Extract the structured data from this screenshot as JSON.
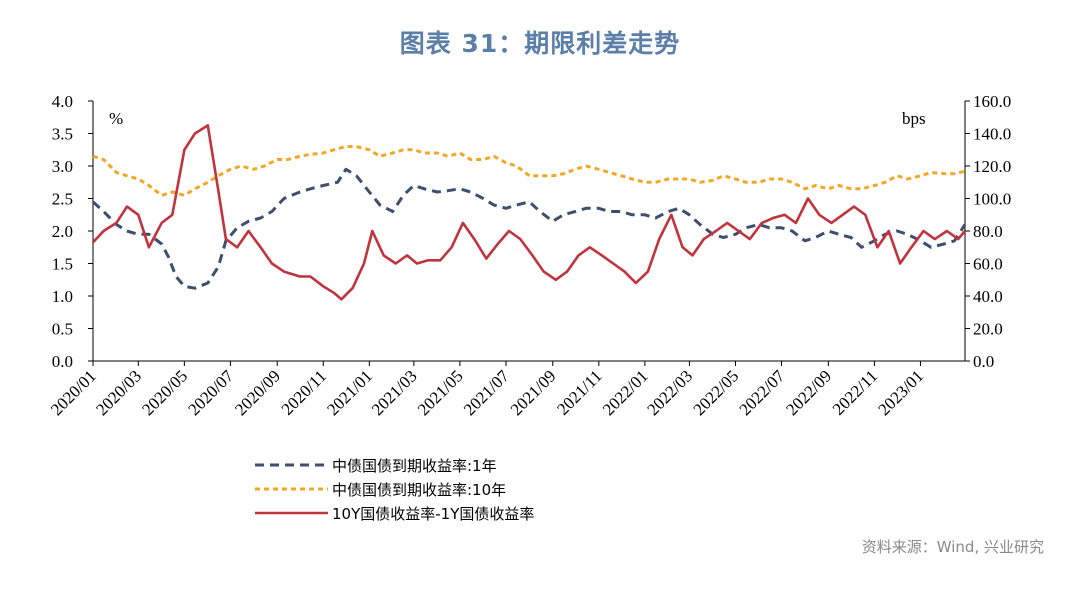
{
  "title": "图表 31：期限利差走势",
  "source": "资料来源：Wind, 兴业研究",
  "chart_data": {
    "type": "line",
    "left_axis": {
      "unit": "%",
      "range": [
        0,
        4
      ],
      "ticks": [
        "0.0",
        "0.5",
        "1.0",
        "1.5",
        "2.0",
        "2.5",
        "3.0",
        "3.5",
        "4.0"
      ]
    },
    "right_axis": {
      "unit": "bps",
      "range": [
        0,
        160
      ],
      "ticks": [
        "0.0",
        "20.0",
        "40.0",
        "60.0",
        "80.0",
        "100.0",
        "120.0",
        "140.0",
        "160.0"
      ]
    },
    "x_range": [
      "2020-01-01",
      "2023-03-01"
    ],
    "x_ticks": [
      "2020/01",
      "2020/03",
      "2020/05",
      "2020/07",
      "2020/09",
      "2020/11",
      "2021/01",
      "2021/03",
      "2021/05",
      "2021/07",
      "2021/09",
      "2021/11",
      "2022/01",
      "2022/03",
      "2022/05",
      "2022/07",
      "2022/09",
      "2022/11",
      "2023/01"
    ],
    "x_tick_dates": [
      "2020-01-01",
      "2020-03-01",
      "2020-05-01",
      "2020-07-01",
      "2020-09-01",
      "2020-11-01",
      "2021-01-01",
      "2021-03-01",
      "2021-05-01",
      "2021-07-01",
      "2021-09-01",
      "2021-11-01",
      "2022-01-01",
      "2022-03-01",
      "2022-05-01",
      "2022-07-01",
      "2022-09-01",
      "2022-11-01",
      "2023-01-01"
    ],
    "legend_position": "bottom-center",
    "grid": false,
    "series": [
      {
        "name": "中债国债到期收益率:1年",
        "axis": "left",
        "style": "dashed",
        "color": "#3d4e6e",
        "points": [
          [
            "2020-01-01",
            2.45
          ],
          [
            "2020-01-15",
            2.3
          ],
          [
            "2020-02-01",
            2.1
          ],
          [
            "2020-02-15",
            2.0
          ],
          [
            "2020-03-01",
            1.95
          ],
          [
            "2020-03-15",
            1.95
          ],
          [
            "2020-04-01",
            1.8
          ],
          [
            "2020-04-10",
            1.6
          ],
          [
            "2020-04-20",
            1.3
          ],
          [
            "2020-05-01",
            1.15
          ],
          [
            "2020-05-15",
            1.12
          ],
          [
            "2020-06-01",
            1.2
          ],
          [
            "2020-06-15",
            1.45
          ],
          [
            "2020-06-25",
            1.85
          ],
          [
            "2020-07-10",
            2.05
          ],
          [
            "2020-07-25",
            2.15
          ],
          [
            "2020-08-10",
            2.2
          ],
          [
            "2020-08-25",
            2.3
          ],
          [
            "2020-09-10",
            2.5
          ],
          [
            "2020-10-01",
            2.6
          ],
          [
            "2020-10-15",
            2.65
          ],
          [
            "2020-11-01",
            2.7
          ],
          [
            "2020-11-20",
            2.75
          ],
          [
            "2020-12-01",
            2.95
          ],
          [
            "2020-12-15",
            2.85
          ],
          [
            "2021-01-01",
            2.6
          ],
          [
            "2021-01-15",
            2.4
          ],
          [
            "2021-02-01",
            2.3
          ],
          [
            "2021-02-15",
            2.55
          ],
          [
            "2021-03-01",
            2.7
          ],
          [
            "2021-03-15",
            2.65
          ],
          [
            "2021-04-01",
            2.6
          ],
          [
            "2021-04-15",
            2.62
          ],
          [
            "2021-05-01",
            2.65
          ],
          [
            "2021-05-15",
            2.6
          ],
          [
            "2021-06-01",
            2.5
          ],
          [
            "2021-06-15",
            2.4
          ],
          [
            "2021-07-01",
            2.35
          ],
          [
            "2021-07-15",
            2.4
          ],
          [
            "2021-08-01",
            2.45
          ],
          [
            "2021-08-15",
            2.3
          ],
          [
            "2021-09-01",
            2.15
          ],
          [
            "2021-09-15",
            2.25
          ],
          [
            "2021-10-01",
            2.3
          ],
          [
            "2021-10-15",
            2.35
          ],
          [
            "2021-11-01",
            2.35
          ],
          [
            "2021-11-15",
            2.3
          ],
          [
            "2021-12-01",
            2.3
          ],
          [
            "2021-12-15",
            2.25
          ],
          [
            "2022-01-01",
            2.25
          ],
          [
            "2022-01-15",
            2.2
          ],
          [
            "2022-02-01",
            2.3
          ],
          [
            "2022-02-15",
            2.35
          ],
          [
            "2022-03-01",
            2.25
          ],
          [
            "2022-03-15",
            2.1
          ],
          [
            "2022-04-01",
            1.95
          ],
          [
            "2022-04-15",
            1.9
          ],
          [
            "2022-05-01",
            1.95
          ],
          [
            "2022-05-15",
            2.05
          ],
          [
            "2022-06-01",
            2.1
          ],
          [
            "2022-06-15",
            2.05
          ],
          [
            "2022-07-01",
            2.05
          ],
          [
            "2022-07-15",
            2.0
          ],
          [
            "2022-08-01",
            1.85
          ],
          [
            "2022-08-15",
            1.9
          ],
          [
            "2022-09-01",
            2.0
          ],
          [
            "2022-09-15",
            1.95
          ],
          [
            "2022-10-01",
            1.9
          ],
          [
            "2022-10-15",
            1.75
          ],
          [
            "2022-11-01",
            1.85
          ],
          [
            "2022-11-15",
            1.95
          ],
          [
            "2022-12-01",
            2.0
          ],
          [
            "2022-12-15",
            1.95
          ],
          [
            "2023-01-01",
            1.85
          ],
          [
            "2023-01-15",
            1.75
          ],
          [
            "2023-02-01",
            1.8
          ],
          [
            "2023-02-15",
            1.85
          ],
          [
            "2023-03-01",
            2.1
          ]
        ]
      },
      {
        "name": "中债国债到期收益率:10年",
        "axis": "left",
        "style": "dashed",
        "color": "#f5a623",
        "points": [
          [
            "2020-01-01",
            3.15
          ],
          [
            "2020-01-15",
            3.1
          ],
          [
            "2020-02-01",
            2.9
          ],
          [
            "2020-02-15",
            2.85
          ],
          [
            "2020-03-01",
            2.8
          ],
          [
            "2020-03-15",
            2.7
          ],
          [
            "2020-04-01",
            2.55
          ],
          [
            "2020-04-15",
            2.6
          ],
          [
            "2020-05-01",
            2.55
          ],
          [
            "2020-05-15",
            2.65
          ],
          [
            "2020-06-01",
            2.75
          ],
          [
            "2020-06-15",
            2.85
          ],
          [
            "2020-07-01",
            2.95
          ],
          [
            "2020-07-15",
            3.0
          ],
          [
            "2020-08-01",
            2.95
          ],
          [
            "2020-08-15",
            3.0
          ],
          [
            "2020-09-01",
            3.1
          ],
          [
            "2020-09-15",
            3.1
          ],
          [
            "2020-10-01",
            3.15
          ],
          [
            "2020-10-15",
            3.18
          ],
          [
            "2020-11-01",
            3.2
          ],
          [
            "2020-11-15",
            3.25
          ],
          [
            "2020-12-01",
            3.3
          ],
          [
            "2020-12-15",
            3.3
          ],
          [
            "2021-01-01",
            3.25
          ],
          [
            "2021-01-15",
            3.15
          ],
          [
            "2021-02-01",
            3.2
          ],
          [
            "2021-02-15",
            3.25
          ],
          [
            "2021-03-01",
            3.25
          ],
          [
            "2021-03-15",
            3.2
          ],
          [
            "2021-04-01",
            3.2
          ],
          [
            "2021-04-15",
            3.15
          ],
          [
            "2021-05-01",
            3.2
          ],
          [
            "2021-05-15",
            3.1
          ],
          [
            "2021-06-01",
            3.1
          ],
          [
            "2021-06-15",
            3.15
          ],
          [
            "2021-07-01",
            3.05
          ],
          [
            "2021-07-15",
            3.0
          ],
          [
            "2021-08-01",
            2.85
          ],
          [
            "2021-08-15",
            2.85
          ],
          [
            "2021-09-01",
            2.85
          ],
          [
            "2021-09-15",
            2.88
          ],
          [
            "2021-10-01",
            2.95
          ],
          [
            "2021-10-15",
            3.0
          ],
          [
            "2021-11-01",
            2.95
          ],
          [
            "2021-11-15",
            2.9
          ],
          [
            "2021-12-01",
            2.85
          ],
          [
            "2021-12-15",
            2.8
          ],
          [
            "2022-01-01",
            2.75
          ],
          [
            "2022-01-15",
            2.75
          ],
          [
            "2022-02-01",
            2.8
          ],
          [
            "2022-02-15",
            2.8
          ],
          [
            "2022-03-01",
            2.8
          ],
          [
            "2022-03-15",
            2.75
          ],
          [
            "2022-04-01",
            2.78
          ],
          [
            "2022-04-15",
            2.85
          ],
          [
            "2022-05-01",
            2.8
          ],
          [
            "2022-05-15",
            2.75
          ],
          [
            "2022-06-01",
            2.75
          ],
          [
            "2022-06-15",
            2.8
          ],
          [
            "2022-07-01",
            2.8
          ],
          [
            "2022-07-15",
            2.75
          ],
          [
            "2022-08-01",
            2.65
          ],
          [
            "2022-08-15",
            2.7
          ],
          [
            "2022-09-01",
            2.65
          ],
          [
            "2022-09-15",
            2.7
          ],
          [
            "2022-10-01",
            2.65
          ],
          [
            "2022-10-15",
            2.65
          ],
          [
            "2022-11-01",
            2.7
          ],
          [
            "2022-11-15",
            2.75
          ],
          [
            "2022-12-01",
            2.85
          ],
          [
            "2022-12-15",
            2.8
          ],
          [
            "2023-01-01",
            2.85
          ],
          [
            "2023-01-15",
            2.9
          ],
          [
            "2023-02-01",
            2.88
          ],
          [
            "2023-02-15",
            2.88
          ],
          [
            "2023-03-01",
            2.92
          ]
        ]
      },
      {
        "name": "10Y国债收益率-1Y国债收益率",
        "axis": "right",
        "style": "solid",
        "color": "#c0343d",
        "points": [
          [
            "2020-01-01",
            73
          ],
          [
            "2020-01-15",
            80
          ],
          [
            "2020-02-01",
            85
          ],
          [
            "2020-02-15",
            95
          ],
          [
            "2020-03-01",
            90
          ],
          [
            "2020-03-15",
            70
          ],
          [
            "2020-04-01",
            85
          ],
          [
            "2020-04-15",
            90
          ],
          [
            "2020-05-01",
            130
          ],
          [
            "2020-05-15",
            140
          ],
          [
            "2020-06-01",
            145
          ],
          [
            "2020-06-15",
            105
          ],
          [
            "2020-06-25",
            75
          ],
          [
            "2020-07-10",
            70
          ],
          [
            "2020-07-25",
            80
          ],
          [
            "2020-08-10",
            70
          ],
          [
            "2020-08-25",
            60
          ],
          [
            "2020-09-10",
            55
          ],
          [
            "2020-10-01",
            52
          ],
          [
            "2020-10-15",
            52
          ],
          [
            "2020-11-01",
            46
          ],
          [
            "2020-11-15",
            42
          ],
          [
            "2020-11-25",
            38
          ],
          [
            "2020-12-10",
            45
          ],
          [
            "2020-12-25",
            60
          ],
          [
            "2021-01-05",
            80
          ],
          [
            "2021-01-20",
            65
          ],
          [
            "2021-02-05",
            60
          ],
          [
            "2021-02-20",
            65
          ],
          [
            "2021-03-05",
            60
          ],
          [
            "2021-03-20",
            62
          ],
          [
            "2021-04-05",
            62
          ],
          [
            "2021-04-20",
            70
          ],
          [
            "2021-05-05",
            85
          ],
          [
            "2021-05-20",
            75
          ],
          [
            "2021-06-05",
            63
          ],
          [
            "2021-06-20",
            72
          ],
          [
            "2021-07-05",
            80
          ],
          [
            "2021-07-20",
            75
          ],
          [
            "2021-08-05",
            65
          ],
          [
            "2021-08-20",
            55
          ],
          [
            "2021-09-05",
            50
          ],
          [
            "2021-09-20",
            55
          ],
          [
            "2021-10-05",
            65
          ],
          [
            "2021-10-20",
            70
          ],
          [
            "2021-11-05",
            65
          ],
          [
            "2021-11-20",
            60
          ],
          [
            "2021-12-05",
            55
          ],
          [
            "2021-12-20",
            48
          ],
          [
            "2022-01-05",
            55
          ],
          [
            "2022-01-20",
            75
          ],
          [
            "2022-02-05",
            90
          ],
          [
            "2022-02-20",
            70
          ],
          [
            "2022-03-05",
            65
          ],
          [
            "2022-03-20",
            75
          ],
          [
            "2022-04-05",
            80
          ],
          [
            "2022-04-20",
            85
          ],
          [
            "2022-05-05",
            80
          ],
          [
            "2022-05-20",
            75
          ],
          [
            "2022-06-05",
            85
          ],
          [
            "2022-06-20",
            88
          ],
          [
            "2022-07-05",
            90
          ],
          [
            "2022-07-20",
            85
          ],
          [
            "2022-08-05",
            100
          ],
          [
            "2022-08-20",
            90
          ],
          [
            "2022-09-05",
            85
          ],
          [
            "2022-09-20",
            90
          ],
          [
            "2022-10-05",
            95
          ],
          [
            "2022-10-20",
            90
          ],
          [
            "2022-11-05",
            70
          ],
          [
            "2022-11-20",
            80
          ],
          [
            "2022-12-05",
            60
          ],
          [
            "2022-12-20",
            70
          ],
          [
            "2023-01-05",
            80
          ],
          [
            "2023-01-20",
            75
          ],
          [
            "2023-02-05",
            80
          ],
          [
            "2023-02-20",
            75
          ],
          [
            "2023-03-01",
            80
          ]
        ]
      }
    ]
  }
}
